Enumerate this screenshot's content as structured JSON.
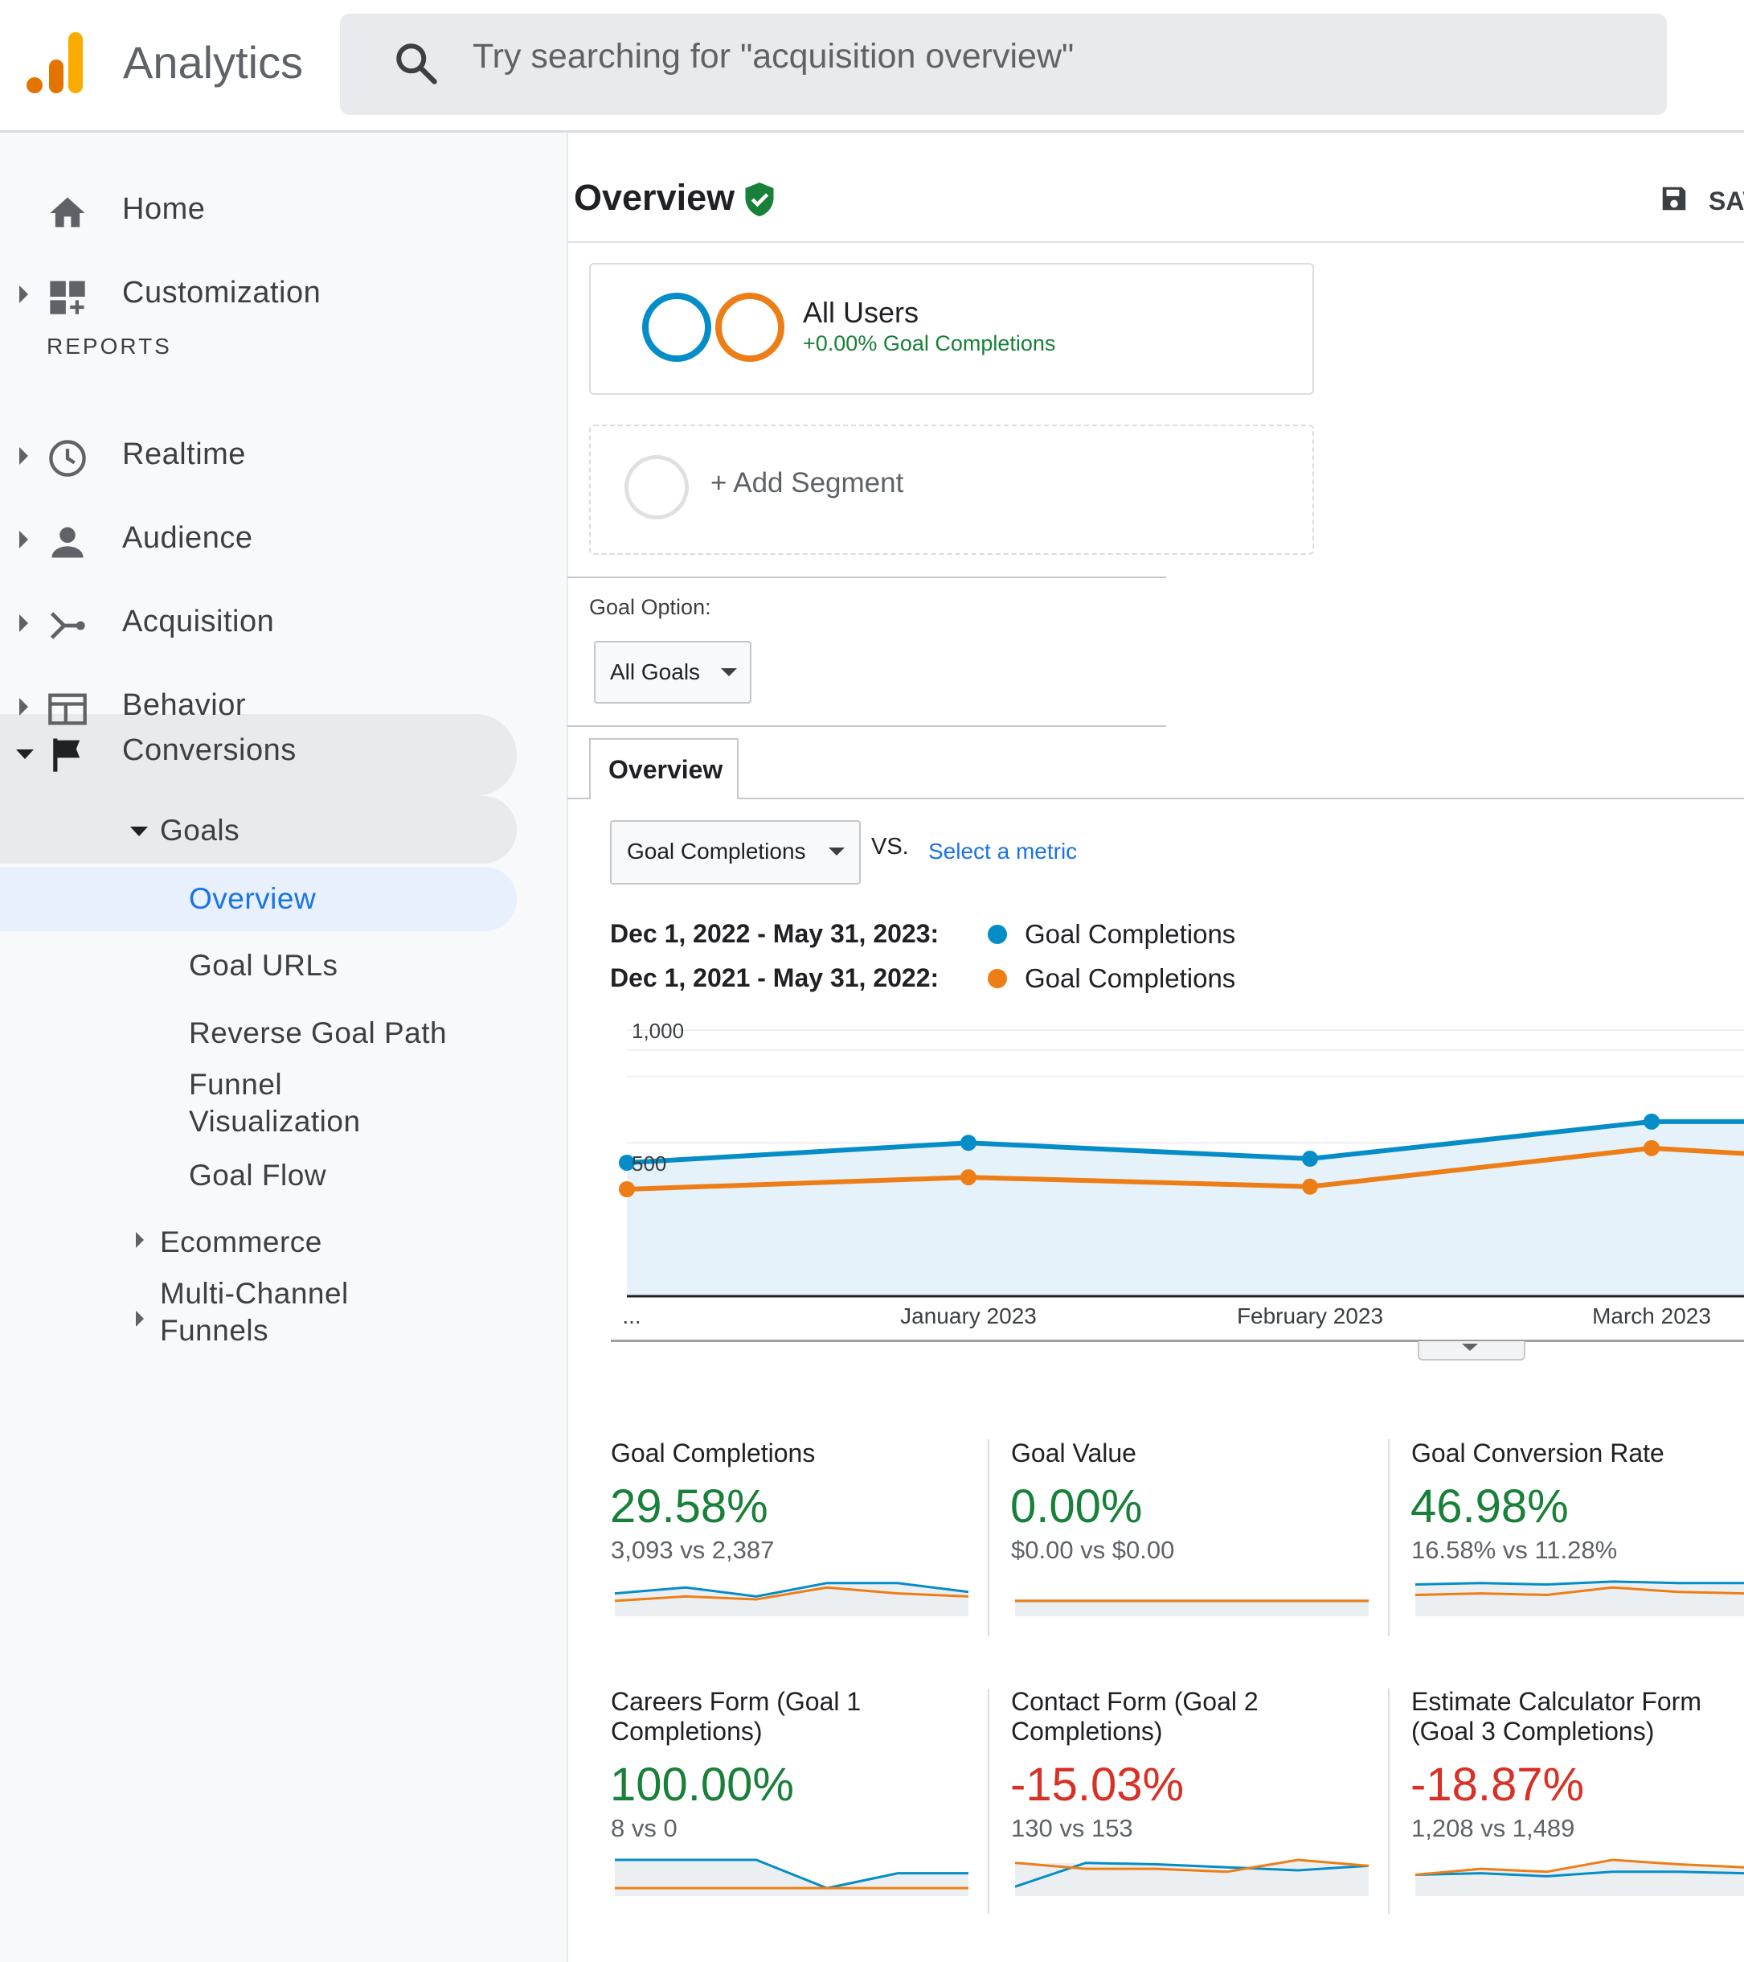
{
  "app": {
    "title": "Analytics",
    "search_placeholder": "Try searching for \"acquisition overview\"",
    "logo_colors": [
      "#e37400",
      "#f9ab00"
    ]
  },
  "sidebar": {
    "reports_label": "REPORTS",
    "items": [
      {
        "label": "Home",
        "icon": "home-icon"
      },
      {
        "label": "Customization",
        "icon": "dashboard-icon"
      },
      {
        "label": "Realtime",
        "icon": "clock-icon"
      },
      {
        "label": "Audience",
        "icon": "person-icon"
      },
      {
        "label": "Acquisition",
        "icon": "acquisition-icon"
      },
      {
        "label": "Behavior",
        "icon": "behavior-icon"
      },
      {
        "label": "Conversions",
        "icon": "flag-icon"
      }
    ],
    "goals": {
      "label": "Goals",
      "children": [
        "Overview",
        "Goal URLs",
        "Reverse Goal Path",
        "Funnel Visualization",
        "Goal Flow"
      ]
    },
    "ecommerce": "Ecommerce",
    "multichannel": "Multi-Channel Funnels"
  },
  "main": {
    "title": "Overview",
    "save_label": "SAVE",
    "segment": {
      "name": "All Users",
      "stat": "+0.00% Goal Completions"
    },
    "add_segment": "+ Add Segment",
    "goal_option_label": "Goal Option:",
    "goal_option_value": "All Goals",
    "tab": "Overview",
    "metric_select": "Goal Completions",
    "vs": "VS.",
    "select_metric": "Select a metric",
    "ranges": [
      {
        "label": "Dec 1, 2022 - May 31, 2023:",
        "metric": "Goal Completions",
        "color": "#058dc7"
      },
      {
        "label": "Dec 1, 2021 - May 31, 2022:",
        "metric": "Goal Completions",
        "color": "#ed7e17"
      }
    ]
  },
  "chart_data": {
    "type": "line",
    "y_ticks": [
      "1,000",
      "500"
    ],
    "ylim": [
      0,
      1000
    ],
    "x_labels": [
      "...",
      "January 2023",
      "February 2023",
      "March 2023"
    ],
    "x": [
      0,
      1,
      2,
      3,
      3.4
    ],
    "series": [
      {
        "name": "Goal Completions",
        "color": "#058dc7",
        "values": [
          500,
          575,
          515,
          655,
          655
        ]
      },
      {
        "name": "Goal Completions",
        "color": "#ed7e17",
        "values": [
          400,
          445,
          410,
          555,
          525
        ]
      }
    ]
  },
  "cards": [
    {
      "title": "Goal Completions",
      "pct": "29.58%",
      "sub": "3,093 vs 2,387",
      "positive": true,
      "spark": {
        "blue": [
          0.55,
          0.75,
          0.45,
          0.9,
          0.9,
          0.6
        ],
        "orange": [
          0.3,
          0.45,
          0.35,
          0.75,
          0.55,
          0.45
        ]
      }
    },
    {
      "title": "Goal Value",
      "pct": "0.00%",
      "sub": "$0.00 vs $0.00",
      "positive": true,
      "spark": {
        "blue": [
          0.3,
          0.3,
          0.3,
          0.3,
          0.3,
          0.3
        ],
        "orange": [
          0.3,
          0.3,
          0.3,
          0.3,
          0.3,
          0.3
        ]
      }
    },
    {
      "title": "Goal Conversion Rate",
      "pct": "46.98%",
      "sub": "16.58% vs 11.28%",
      "positive": true,
      "spark": {
        "blue": [
          0.85,
          0.9,
          0.85,
          0.95,
          0.9,
          0.9
        ],
        "orange": [
          0.5,
          0.55,
          0.5,
          0.75,
          0.6,
          0.55
        ]
      }
    },
    {
      "title": "Careers Form (Goal 1 Completions)",
      "pct": "100.00%",
      "sub": "8 vs 0",
      "positive": true,
      "spark": {
        "blue": [
          1,
          1,
          1,
          0.05,
          0.55,
          0.55
        ],
        "orange": [
          0.05,
          0.05,
          0.05,
          0.05,
          0.05,
          0.05
        ]
      }
    },
    {
      "title": "Contact Form (Goal 2 Completions)",
      "pct": "-15.03%",
      "sub": "130 vs 153",
      "positive": false,
      "spark": {
        "blue": [
          0.1,
          0.9,
          0.85,
          0.75,
          0.65,
          0.8
        ],
        "orange": [
          0.9,
          0.7,
          0.7,
          0.6,
          1,
          0.8
        ]
      }
    },
    {
      "title": "Estimate Calculator Form (Goal 3 Completions)",
      "pct": "-18.87%",
      "sub": "1,208 vs 1,489",
      "positive": false,
      "spark": {
        "blue": [
          0.5,
          0.55,
          0.45,
          0.6,
          0.6,
          0.55
        ],
        "orange": [
          0.5,
          0.7,
          0.6,
          1,
          0.85,
          0.75
        ]
      }
    }
  ],
  "colors": {
    "positive": "#188038",
    "negative": "#d93025",
    "link": "#1a73e8"
  }
}
